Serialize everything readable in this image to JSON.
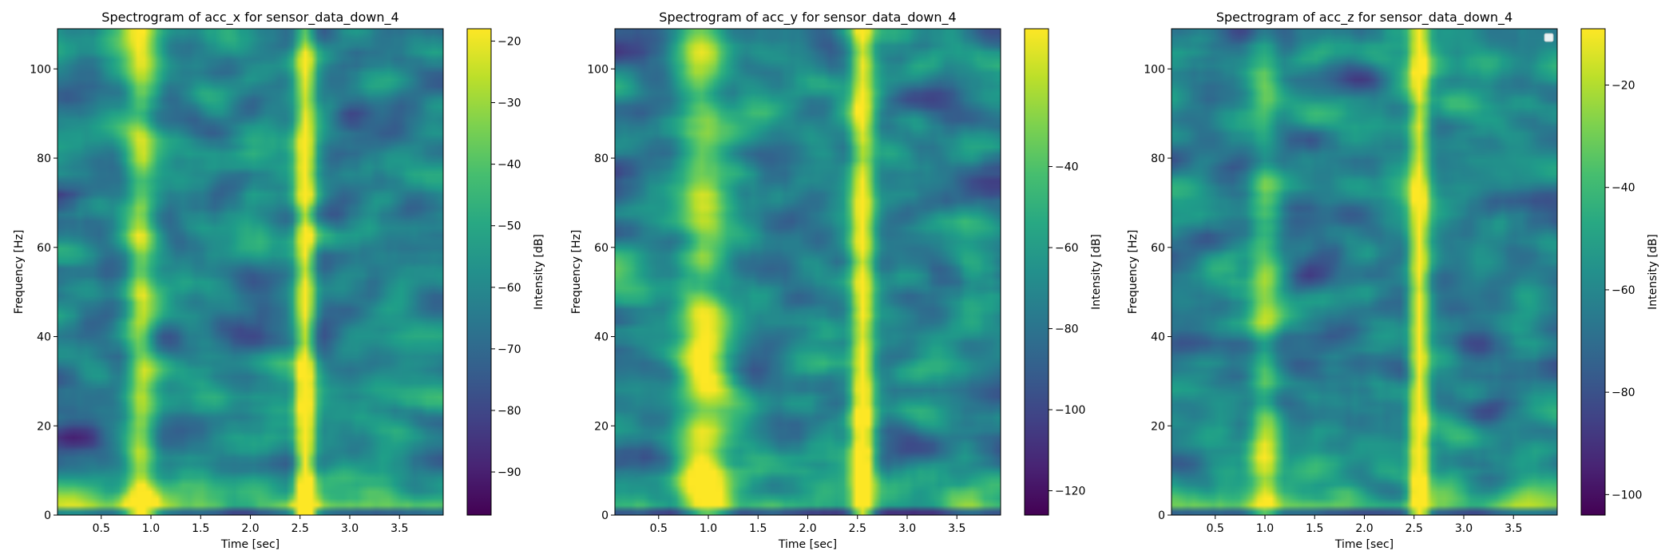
{
  "chart_data": [
    {
      "type": "heatmap",
      "title": "Spectrogram of acc_x for sensor_data_down_4",
      "xlabel": "Time [sec]",
      "ylabel": "Frequency [Hz]",
      "xlim": [
        0.06,
        3.94
      ],
      "ylim": [
        0,
        109
      ],
      "xticks": [
        0.5,
        1.0,
        1.5,
        2.0,
        2.5,
        3.0,
        3.5
      ],
      "xtick_labels": [
        "0.5",
        "1.0",
        "1.5",
        "2.0",
        "2.5",
        "3.0",
        "3.5"
      ],
      "yticks": [
        0,
        20,
        40,
        60,
        80,
        100
      ],
      "ytick_labels": [
        "0",
        "20",
        "40",
        "60",
        "80",
        "100"
      ],
      "colorbar": {
        "label": "Intensity [dB]",
        "range": [
          -97,
          -18
        ],
        "ticks": [
          -90,
          -80,
          -70,
          -60,
          -50,
          -40,
          -30,
          -20
        ],
        "tick_labels": [
          "−90",
          "−80",
          "−70",
          "−60",
          "−50",
          "−40",
          "−30",
          "−20"
        ]
      },
      "colormap": "viridis",
      "bright_bands": [
        {
          "time": 0.9,
          "strength": 0.55,
          "width": 0.15
        },
        {
          "time": 2.55,
          "strength": 0.85,
          "width": 0.1
        }
      ],
      "low_freq_boost": 0.35,
      "legend": false
    },
    {
      "type": "heatmap",
      "title": "Spectrogram of acc_y for sensor_data_down_4",
      "xlabel": "Time [sec]",
      "ylabel": "Frequency [Hz]",
      "xlim": [
        0.06,
        3.94
      ],
      "ylim": [
        0,
        109
      ],
      "xticks": [
        0.5,
        1.0,
        1.5,
        2.0,
        2.5,
        3.0,
        3.5
      ],
      "xtick_labels": [
        "0.5",
        "1.0",
        "1.5",
        "2.0",
        "2.5",
        "3.0",
        "3.5"
      ],
      "yticks": [
        0,
        20,
        40,
        60,
        80,
        100
      ],
      "ytick_labels": [
        "0",
        "20",
        "40",
        "60",
        "80",
        "100"
      ],
      "colorbar": {
        "label": "Intensity [dB]",
        "range": [
          -126,
          -6
        ],
        "ticks": [
          -120,
          -100,
          -80,
          -60,
          -40
        ],
        "tick_labels": [
          "−120",
          "−100",
          "−80",
          "−60",
          "−40"
        ]
      },
      "colormap": "viridis",
      "bright_bands": [
        {
          "time": 0.95,
          "strength": 0.65,
          "width": 0.25
        },
        {
          "time": 2.55,
          "strength": 0.85,
          "width": 0.12
        }
      ],
      "low_freq_boost": 0.3,
      "legend": false
    },
    {
      "type": "heatmap",
      "title": "Spectrogram of acc_z for sensor_data_down_4",
      "xlabel": "Time [sec]",
      "ylabel": "Frequency [Hz]",
      "xlim": [
        0.06,
        3.94
      ],
      "ylim": [
        0,
        109
      ],
      "xticks": [
        0.5,
        1.0,
        1.5,
        2.0,
        2.5,
        3.0,
        3.5
      ],
      "xtick_labels": [
        "0.5",
        "1.0",
        "1.5",
        "2.0",
        "2.5",
        "3.0",
        "3.5"
      ],
      "yticks": [
        0,
        20,
        40,
        60,
        80,
        100
      ],
      "ytick_labels": [
        "0",
        "20",
        "40",
        "60",
        "80",
        "100"
      ],
      "colorbar": {
        "label": "Intensity [dB]",
        "range": [
          -104,
          -9
        ],
        "ticks": [
          -100,
          -80,
          -60,
          -40,
          -20
        ],
        "tick_labels": [
          "−100",
          "−80",
          "−60",
          "−40",
          "−20"
        ]
      },
      "colormap": "viridis",
      "bright_bands": [
        {
          "time": 1.0,
          "strength": 0.45,
          "width": 0.15
        },
        {
          "time": 2.55,
          "strength": 0.85,
          "width": 0.1
        }
      ],
      "low_freq_boost": 0.3,
      "legend": true
    }
  ]
}
